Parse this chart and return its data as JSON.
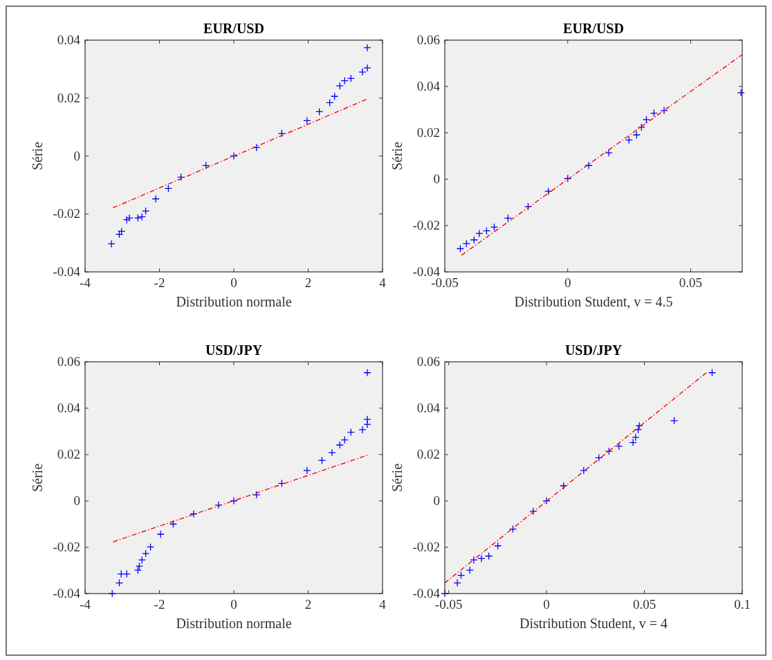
{
  "chart_data": [
    {
      "type": "scatter",
      "title": "EUR/USD",
      "xlabel": "Distribution normale",
      "ylabel": "Série",
      "xlim": [
        -4,
        4
      ],
      "xticks": [
        -4,
        -2,
        0,
        2,
        4
      ],
      "ylim": [
        -0.04,
        0.04
      ],
      "yticks": [
        -0.04,
        -0.02,
        0,
        0.02,
        0.04
      ],
      "series": [
        {
          "type": "scatter",
          "color": "#0000ff",
          "marker": "cross",
          "x": [
            -3.29,
            -3.08,
            -3.02,
            -2.88,
            -2.81,
            -2.58,
            -2.47,
            -2.37,
            -2.1,
            -1.76,
            -1.42,
            -0.75,
            0,
            0.61,
            1.29,
            1.97,
            2.3,
            2.58,
            2.71,
            2.85,
            2.98,
            3.15,
            3.46,
            3.59,
            3.59
          ],
          "values": [
            -0.0303,
            -0.027,
            -0.026,
            -0.022,
            -0.0214,
            -0.0214,
            -0.021,
            -0.019,
            -0.0148,
            -0.0112,
            -0.0073,
            -0.0033,
            0,
            0.0029,
            0.0078,
            0.0122,
            0.0153,
            0.0184,
            0.0206,
            0.0242,
            0.026,
            0.0268,
            0.029,
            0.0304,
            0.0374
          ]
        },
        {
          "type": "line",
          "color": "#ff0000",
          "line_style": "dashed",
          "x": [
            -3.25,
            3.59
          ],
          "values": [
            -0.0179,
            0.0197
          ]
        }
      ]
    },
    {
      "type": "scatter",
      "title": "EUR/USD",
      "xlabel": "Distribution Student, v = 4.5",
      "ylabel": "Série",
      "xlim": [
        -0.05,
        0.071
      ],
      "xticks": [
        -0.05,
        0,
        0.05
      ],
      "ylim": [
        -0.04,
        0.06
      ],
      "yticks": [
        -0.04,
        -0.02,
        0,
        0.02,
        0.04,
        0.06
      ],
      "series": [
        {
          "type": "scatter",
          "color": "#0000ff",
          "marker": "cross",
          "x": [
            -0.0437,
            -0.0412,
            -0.0381,
            -0.036,
            -0.033,
            -0.0299,
            -0.0243,
            -0.0161,
            -0.0079,
            0,
            0.0085,
            0.0167,
            0.0249,
            0.028,
            0.03,
            0.032,
            0.0351,
            0.0392,
            0.0705
          ],
          "values": [
            -0.03,
            -0.0278,
            -0.0262,
            -0.0234,
            -0.0223,
            -0.0207,
            -0.0168,
            -0.0118,
            -0.0052,
            0.0003,
            0.0059,
            0.0114,
            0.0169,
            0.0191,
            0.0224,
            0.0257,
            0.0285,
            0.0296,
            0.0373
          ]
        },
        {
          "type": "line",
          "color": "#ff0000",
          "line_style": "dashed",
          "x": [
            -0.0432,
            0.0708
          ],
          "values": [
            -0.0328,
            0.0536
          ]
        }
      ]
    },
    {
      "type": "scatter",
      "title": "USD/JPY",
      "xlabel": "Distribution normale",
      "ylabel": "Série",
      "xlim": [
        -4,
        4
      ],
      "xticks": [
        -4,
        -2,
        0,
        2,
        4
      ],
      "ylim": [
        -0.04,
        0.06
      ],
      "yticks": [
        -0.04,
        -0.02,
        0,
        0.02,
        0.04,
        0.06
      ],
      "series": [
        {
          "type": "scatter",
          "color": "#0000ff",
          "marker": "cross",
          "x": [
            -3.27,
            -3.08,
            -3.03,
            -2.88,
            -2.58,
            -2.54,
            -2.47,
            -2.37,
            -2.24,
            -1.97,
            -1.63,
            -1.08,
            -0.41,
            0,
            0.61,
            1.29,
            1.97,
            2.37,
            2.64,
            2.85,
            2.98,
            3.15,
            3.46,
            3.59,
            3.59,
            3.59
          ],
          "values": [
            -0.04,
            -0.0354,
            -0.0315,
            -0.0315,
            -0.0299,
            -0.0282,
            -0.0255,
            -0.0227,
            -0.0199,
            -0.0144,
            -0.01,
            -0.0056,
            -0.0018,
            0,
            0.0026,
            0.0076,
            0.0131,
            0.0175,
            0.0208,
            0.0241,
            0.0263,
            0.0296,
            0.0307,
            0.033,
            0.0352,
            0.0553
          ]
        },
        {
          "type": "line",
          "color": "#ff0000",
          "line_style": "dashed",
          "x": [
            -3.25,
            3.59
          ],
          "values": [
            -0.0177,
            0.0197
          ]
        }
      ]
    },
    {
      "type": "scatter",
      "title": "USD/JPY",
      "xlabel": "Distribution Student, v = 4",
      "ylabel": "Série",
      "xlim": [
        -0.052,
        0.1
      ],
      "xticks": [
        -0.05,
        0,
        0.05,
        0.1
      ],
      "ylim": [
        -0.04,
        0.06
      ],
      "yticks": [
        -0.04,
        -0.02,
        0,
        0.02,
        0.04,
        0.06
      ],
      "series": [
        {
          "type": "scatter",
          "color": "#0000ff",
          "marker": "cross",
          "x": [
            -0.052,
            -0.0456,
            -0.0437,
            -0.0392,
            -0.0372,
            -0.0333,
            -0.0295,
            -0.0249,
            -0.0172,
            -0.0068,
            0,
            0.0087,
            0.019,
            0.0267,
            0.0319,
            0.037,
            0.0442,
            0.0455,
            0.0468,
            0.0474,
            0.0652,
            0.0846
          ],
          "values": [
            -0.04,
            -0.0354,
            -0.0321,
            -0.0299,
            -0.0255,
            -0.0249,
            -0.0238,
            -0.0194,
            -0.0122,
            -0.0045,
            0,
            0.0065,
            0.0131,
            0.0186,
            0.0214,
            0.0236,
            0.0252,
            0.0274,
            0.0307,
            0.0324,
            0.0346,
            0.0553
          ]
        },
        {
          "type": "line",
          "color": "#ff0000",
          "line_style": "dashed",
          "x": [
            -0.052,
            0.0817
          ],
          "values": [
            -0.0354,
            0.0553
          ]
        }
      ]
    }
  ]
}
